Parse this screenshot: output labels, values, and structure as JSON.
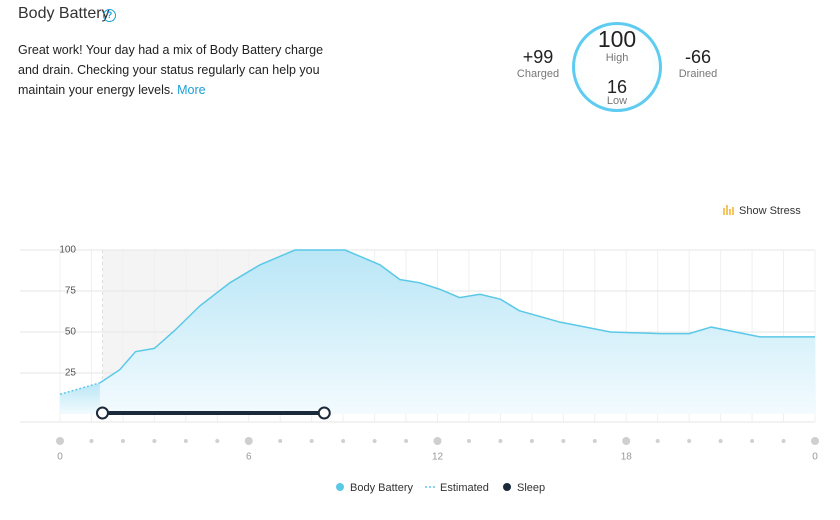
{
  "header": {
    "title": "Body Battery",
    "description": "Great work! Your day had a mix of Body Battery charge and drain. Checking your status regularly can help you maintain your energy levels.",
    "link": "More"
  },
  "summary": {
    "charged": "+99",
    "charged_label": "Charged",
    "high": 100,
    "high_label": "High",
    "low": 16,
    "low_label": "Low",
    "drained": "-66",
    "drained_label": "Drained"
  },
  "toggle": "Show Stress",
  "chart_data": {
    "type": "area",
    "xlim": [
      0,
      24
    ],
    "xticks": [
      0,
      6,
      12,
      18,
      {
        "value": 24,
        "label": "0"
      }
    ],
    "ylim": [
      0,
      100
    ],
    "yticks": [
      25,
      50,
      75,
      100
    ],
    "grid": true,
    "series": [
      {
        "name": "Estimated",
        "color": "#5bc8e8",
        "dashed": true,
        "x": [
          0,
          1.27
        ],
        "values": [
          12,
          19
        ]
      },
      {
        "name": "Body Battery",
        "color": "#5bc8e8",
        "x": [
          1.27,
          1.9,
          2.4,
          3.0,
          3.65,
          4.45,
          5.4,
          6.36,
          7.47,
          9.06,
          10.17,
          10.8,
          11.44,
          12.08,
          12.7,
          13.35,
          14.0,
          14.6,
          15.9,
          17.5,
          19.1,
          20.0,
          20.7,
          22.25,
          24
        ],
        "values": [
          19,
          27,
          38,
          40,
          51,
          66,
          80,
          91,
          100,
          100,
          91,
          82,
          80,
          76,
          71,
          73,
          70,
          63,
          56,
          50,
          49,
          49,
          53,
          47,
          47
        ]
      }
    ],
    "sleep": {
      "name": "Sleep",
      "color": "#1b2a3a",
      "start": 1.35,
      "end": 8.4
    }
  }
}
